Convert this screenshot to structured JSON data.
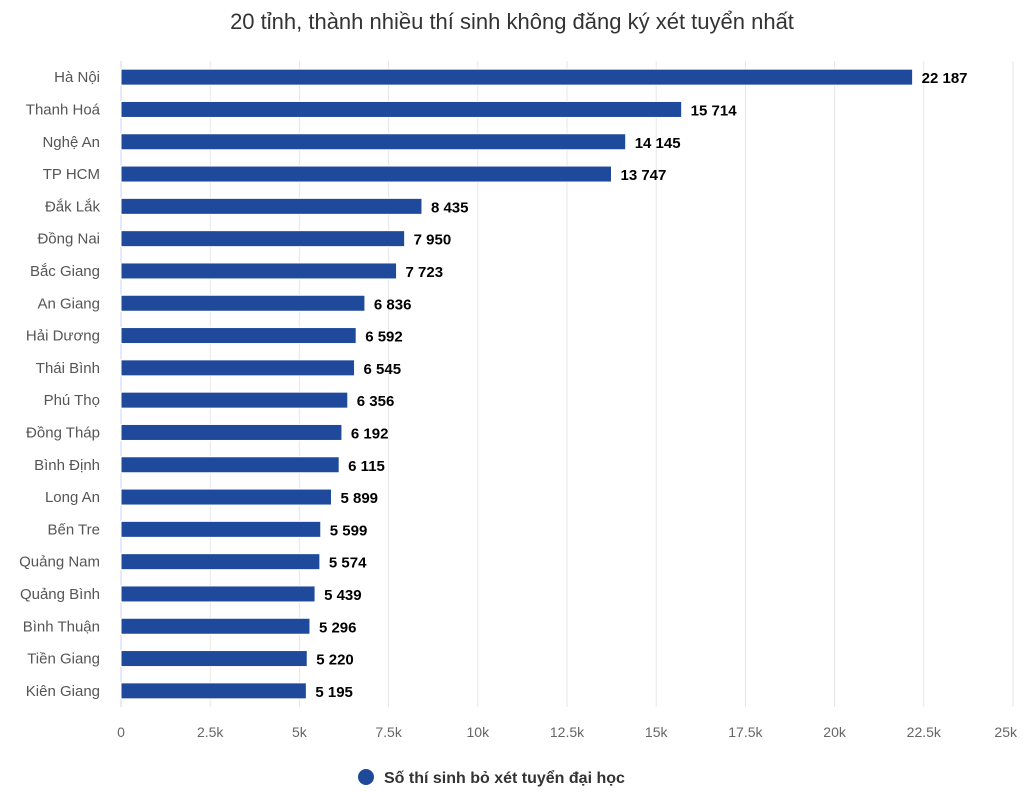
{
  "chart_data": {
    "type": "bar",
    "orientation": "horizontal",
    "title": "20 tỉnh, thành nhiều thí sinh không đăng ký xét tuyển nhất",
    "categories": [
      "Hà Nội",
      "Thanh Hoá",
      "Nghệ An",
      "TP HCM",
      "Đắk Lắk",
      "Đồng Nai",
      "Bắc Giang",
      "An Giang",
      "Hải Dương",
      "Thái Bình",
      "Phú Thọ",
      "Đồng Tháp",
      "Bình Định",
      "Long An",
      "Bến Tre",
      "Quảng Nam",
      "Quảng Bình",
      "Bình Thuận",
      "Tiền Giang",
      "Kiên Giang"
    ],
    "series": [
      {
        "name": "Số thí sinh bỏ xét tuyển đại học",
        "color": "#1f4a9c",
        "values": [
          22187,
          15714,
          14145,
          13747,
          8435,
          7950,
          7723,
          6836,
          6592,
          6545,
          6356,
          6192,
          6115,
          5899,
          5599,
          5574,
          5439,
          5296,
          5220,
          5195
        ],
        "data_labels": [
          "22 187",
          "15 714",
          "14 145",
          "13 747",
          "8 435",
          "7 950",
          "7 723",
          "6 836",
          "6 592",
          "6 545",
          "6 356",
          "6 192",
          "6 115",
          "5 899",
          "5 599",
          "5 574",
          "5 439",
          "5 296",
          "5 220",
          "5 195"
        ]
      }
    ],
    "xlim": [
      0,
      25000
    ],
    "x_ticks": [
      0,
      2500,
      5000,
      7500,
      10000,
      12500,
      15000,
      17500,
      20000,
      22500,
      25000
    ],
    "x_tick_labels": [
      "0",
      "2.5k",
      "5k",
      "7.5k",
      "10k",
      "12.5k",
      "15k",
      "17.5k",
      "20k",
      "22.5k",
      "25k"
    ],
    "xlabel": "",
    "ylabel": "",
    "grid": true,
    "legend": "bottom"
  }
}
